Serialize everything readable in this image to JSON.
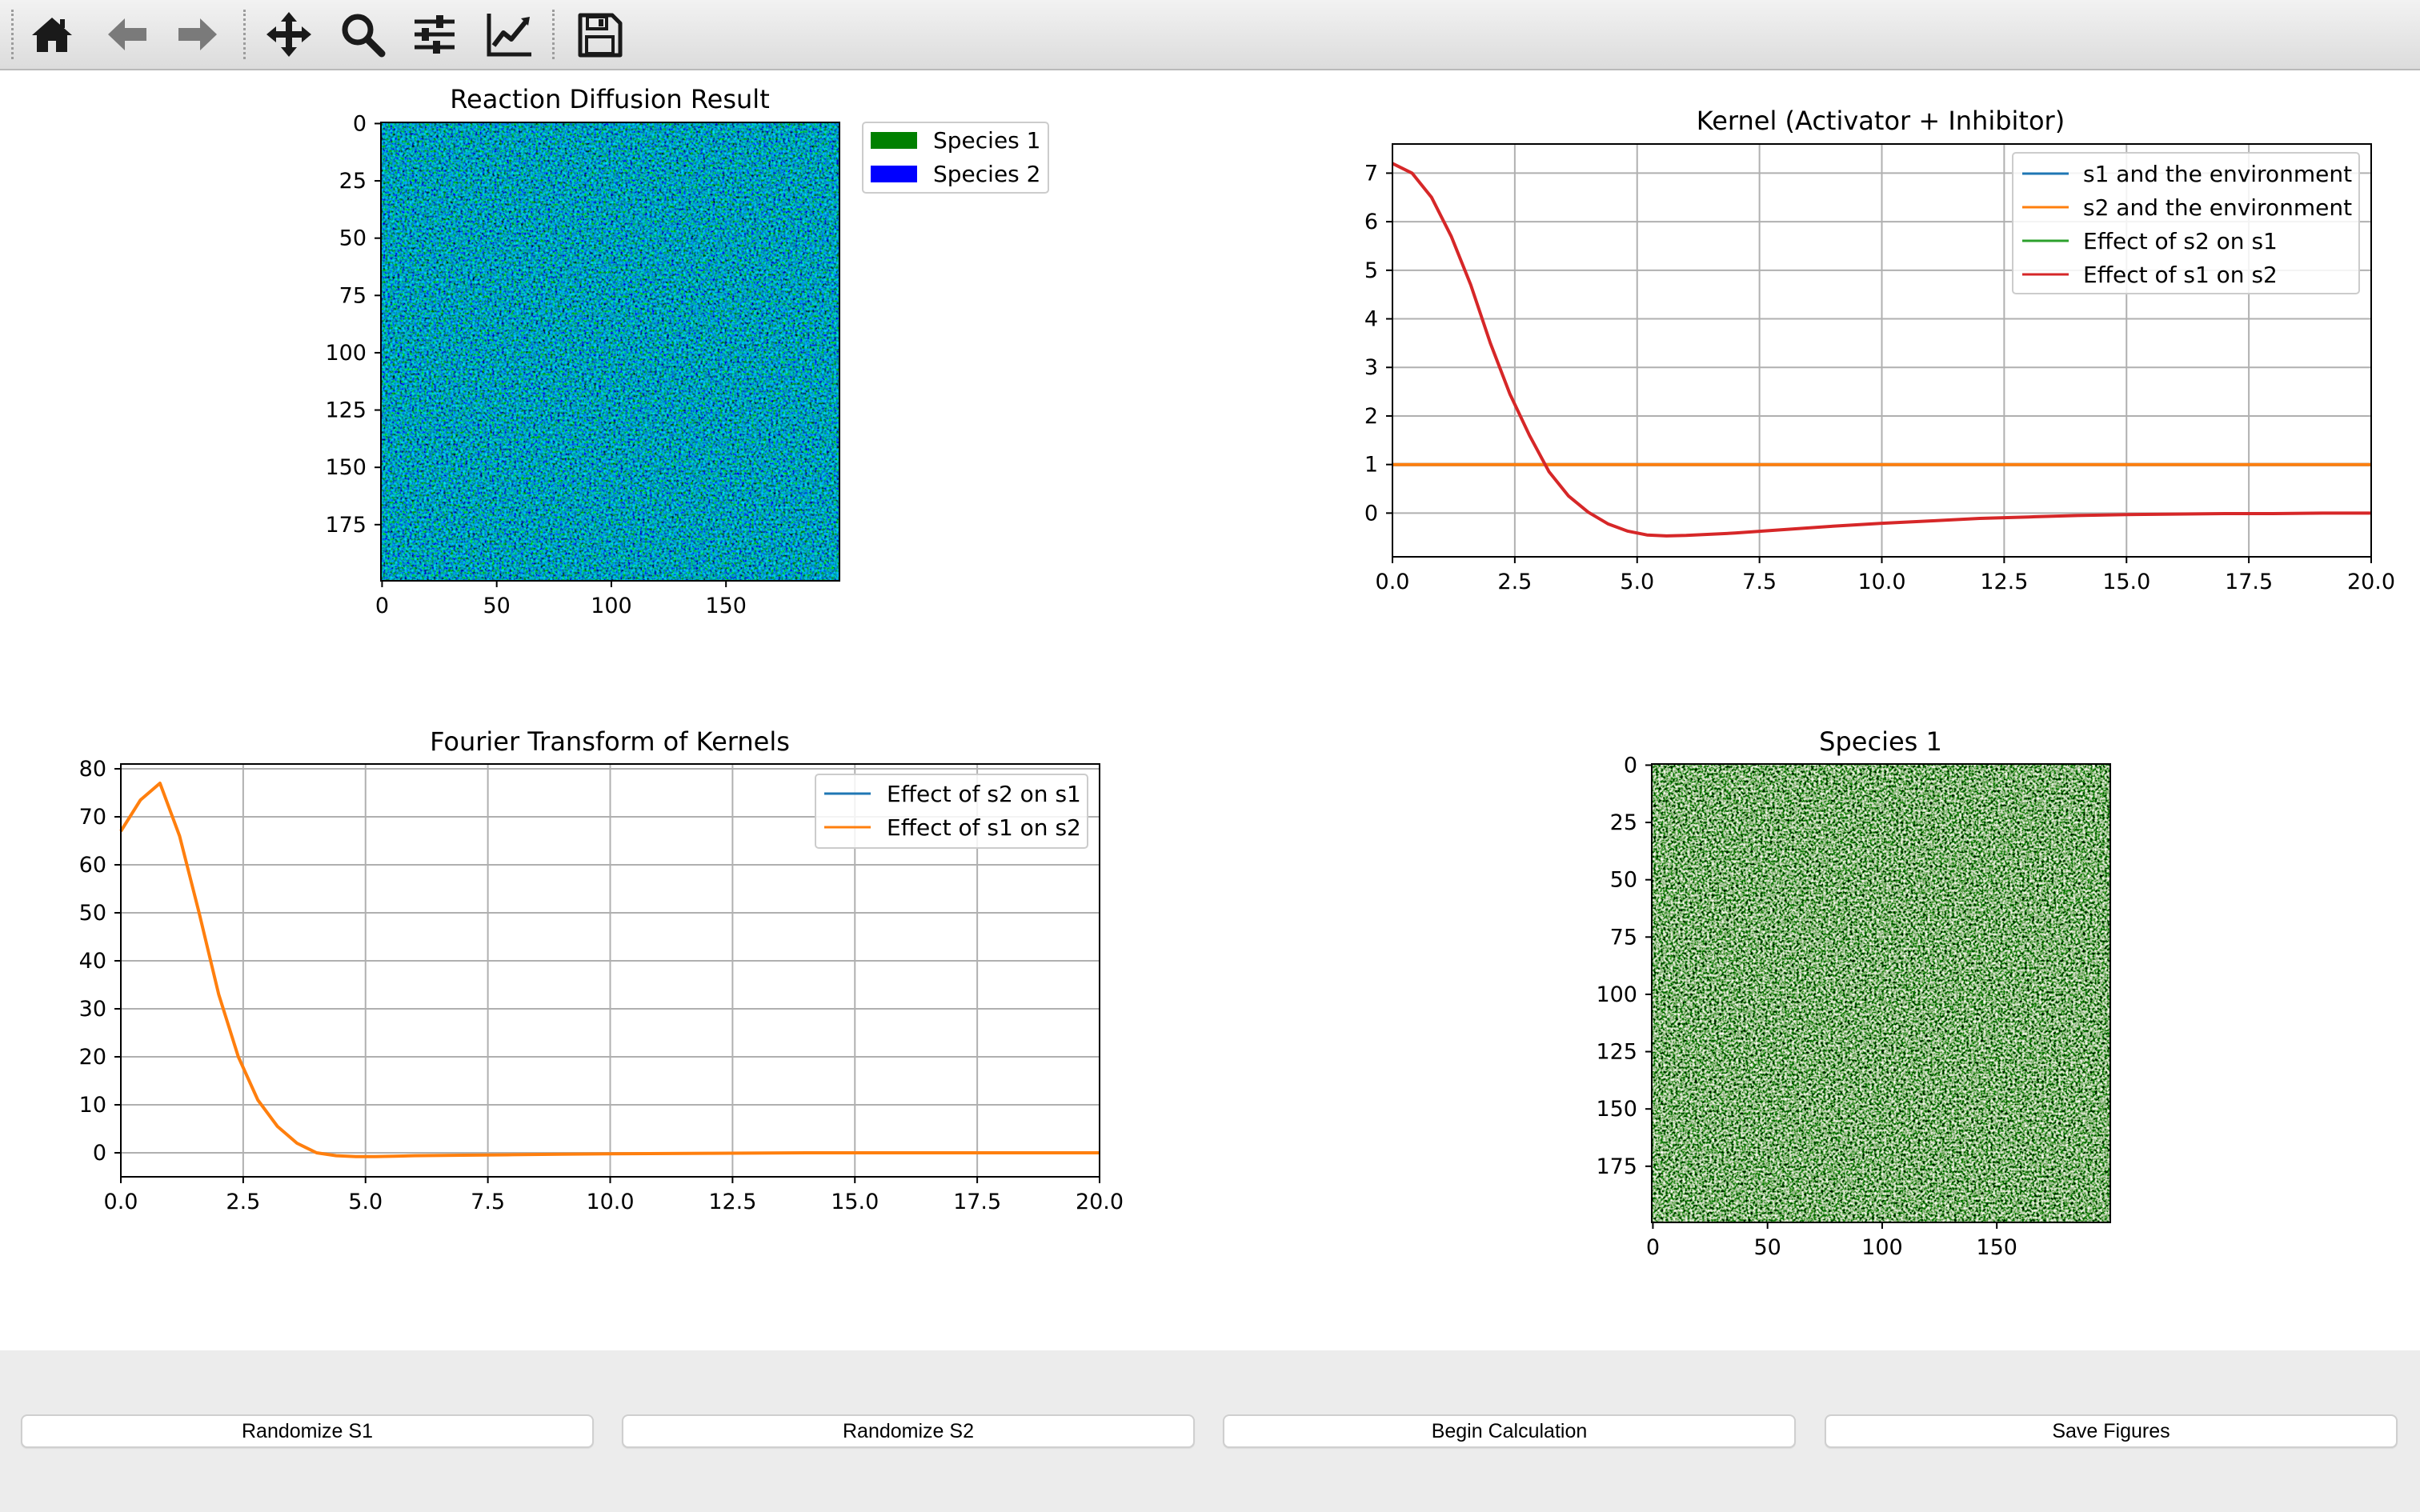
{
  "toolbar": {
    "tools": [
      {
        "name": "home-icon"
      },
      {
        "name": "back-arrow-icon"
      },
      {
        "name": "forward-arrow-icon"
      },
      {
        "name": "pan-move-icon"
      },
      {
        "name": "zoom-magnifier-icon"
      },
      {
        "name": "configure-subplots-icon"
      },
      {
        "name": "edit-axis-curves-icon"
      },
      {
        "name": "save-floppy-icon"
      }
    ]
  },
  "buttons": {
    "randomize_s1": "Randomize S1",
    "randomize_s2": "Randomize S2",
    "begin": "Begin Calculation",
    "save": "Save Figures"
  },
  "colors": {
    "species1": "#008000",
    "species2": "#0000ff",
    "c0": "#1f77b4",
    "c1": "#ff7f0e",
    "c2": "#2ca02c",
    "c3": "#d62728"
  },
  "chart_data": [
    {
      "type": "heatmap",
      "title": "Reaction Diffusion Result",
      "grid_size": [
        200,
        200
      ],
      "xticks": [
        "0",
        "50",
        "100",
        "150"
      ],
      "yticks": [
        "0",
        "25",
        "50",
        "75",
        "100",
        "125",
        "150",
        "175"
      ],
      "xticks_values": [
        0,
        50,
        100,
        150
      ],
      "yticks_values": [
        0,
        25,
        50,
        75,
        100,
        125,
        150,
        175
      ],
      "colormap": "green-blue mix",
      "legend_position": "outside-right",
      "legend": [
        {
          "label": "Species 1",
          "color": "#008000"
        },
        {
          "label": "Species 2",
          "color": "#0000ff"
        }
      ]
    },
    {
      "type": "line",
      "title": "Kernel (Activator + Inhibitor)",
      "xlim": [
        0,
        20
      ],
      "ylim": [
        -0.9,
        7.6
      ],
      "grid": true,
      "legend_position": "top-right",
      "xticks": [
        "0.0",
        "2.5",
        "5.0",
        "7.5",
        "10.0",
        "12.5",
        "15.0",
        "17.5",
        "20.0"
      ],
      "yticks": [
        "0",
        "1",
        "2",
        "3",
        "4",
        "5",
        "6",
        "7"
      ],
      "xticks_values": [
        0,
        2.5,
        5,
        7.5,
        10,
        12.5,
        15,
        17.5,
        20
      ],
      "yticks_values": [
        0,
        1,
        2,
        3,
        4,
        5,
        6,
        7
      ],
      "series": [
        {
          "name": "s1 and the environment",
          "color": "#1f77b4",
          "x": [
            0,
            20
          ],
          "y": [
            1,
            1
          ]
        },
        {
          "name": "s2 and the environment",
          "color": "#ff7f0e",
          "x": [
            0,
            20
          ],
          "y": [
            1,
            1
          ]
        },
        {
          "name": "Effect of s2 on s1",
          "color": "#2ca02c",
          "x": [],
          "y": []
        },
        {
          "name": "Effect of s1 on s2",
          "color": "#d62728",
          "x": [
            0,
            0.4,
            0.8,
            1.2,
            1.6,
            2.0,
            2.4,
            2.8,
            3.2,
            3.6,
            4.0,
            4.4,
            4.8,
            5.2,
            5.6,
            6.0,
            7,
            8,
            9,
            10,
            11,
            12,
            13,
            14,
            15,
            16,
            17,
            18,
            19,
            20
          ],
          "y": [
            7.2,
            7.0,
            6.5,
            5.7,
            4.7,
            3.5,
            2.45,
            1.6,
            0.85,
            0.35,
            0.02,
            -0.22,
            -0.37,
            -0.45,
            -0.47,
            -0.46,
            -0.41,
            -0.34,
            -0.27,
            -0.21,
            -0.16,
            -0.11,
            -0.08,
            -0.05,
            -0.03,
            -0.02,
            -0.01,
            -0.01,
            0.0,
            0.0
          ]
        }
      ]
    },
    {
      "type": "line",
      "title": "Fourier Transform of Kernels",
      "xlim": [
        0,
        20
      ],
      "ylim": [
        -5,
        81
      ],
      "grid": true,
      "legend_position": "top-right",
      "xticks": [
        "0.0",
        "2.5",
        "5.0",
        "7.5",
        "10.0",
        "12.5",
        "15.0",
        "17.5",
        "20.0"
      ],
      "yticks": [
        "0",
        "10",
        "20",
        "30",
        "40",
        "50",
        "60",
        "70",
        "80"
      ],
      "xticks_values": [
        0,
        2.5,
        5,
        7.5,
        10,
        12.5,
        15,
        17.5,
        20
      ],
      "yticks_values": [
        0,
        10,
        20,
        30,
        40,
        50,
        60,
        70,
        80
      ],
      "series": [
        {
          "name": "Effect of s2 on s1",
          "color": "#1f77b4",
          "x": [],
          "y": []
        },
        {
          "name": "Effect of s1 on s2",
          "color": "#ff7f0e",
          "x": [
            0,
            0.4,
            0.8,
            1.2,
            1.6,
            2.0,
            2.4,
            2.8,
            3.2,
            3.6,
            4.0,
            4.4,
            4.8,
            5.2,
            5.6,
            6.0,
            7,
            8,
            9,
            10,
            12,
            14,
            16,
            18,
            20
          ],
          "y": [
            67,
            73.5,
            77,
            66,
            50,
            33,
            20,
            11,
            5.5,
            2,
            0,
            -0.6,
            -0.8,
            -0.8,
            -0.7,
            -0.6,
            -0.5,
            -0.4,
            -0.3,
            -0.2,
            -0.1,
            0,
            0,
            0,
            0
          ]
        }
      ]
    },
    {
      "type": "heatmap",
      "title": "Species 1",
      "grid_size": [
        200,
        200
      ],
      "xticks": [
        "0",
        "50",
        "100",
        "150"
      ],
      "yticks": [
        "0",
        "25",
        "50",
        "75",
        "100",
        "125",
        "150",
        "175"
      ],
      "xticks_values": [
        0,
        50,
        100,
        150
      ],
      "yticks_values": [
        0,
        25,
        50,
        75,
        100,
        125,
        150,
        175
      ],
      "colormap": "Greens"
    }
  ]
}
